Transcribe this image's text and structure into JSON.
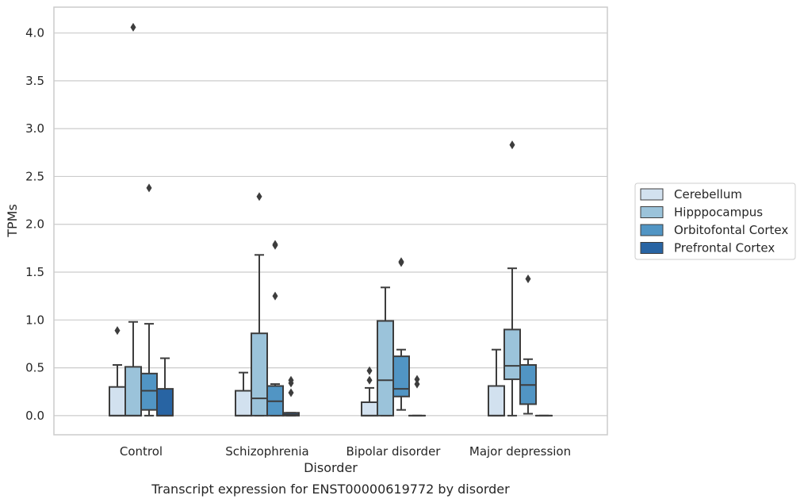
{
  "chart_data": {
    "type": "box",
    "xlabel": "Disorder",
    "ylabel": "TPMs",
    "caption": "Transcript expression for ENST00000619772 by disorder",
    "ylim": [
      -0.2,
      4.27
    ],
    "yticks": [
      0.0,
      0.5,
      1.0,
      1.5,
      2.0,
      2.5,
      3.0,
      3.5,
      4.0
    ],
    "ytick_labels": [
      "0.0",
      "0.5",
      "1.0",
      "1.5",
      "2.0",
      "2.5",
      "3.0",
      "3.5",
      "4.0"
    ],
    "grid": "horizontal",
    "legend_position": "right",
    "categories": [
      "Control",
      "Schizophrenia",
      "Bipolar disorder",
      "Major depression"
    ],
    "series": [
      {
        "name": "Cerebellum",
        "color": "#d2e1ef",
        "boxes": [
          {
            "whislo": 0.0,
            "q1": 0.0,
            "med": 0.0,
            "q3": 0.3,
            "whishi": 0.53,
            "fliers": [
              0.89
            ]
          },
          {
            "whislo": 0.0,
            "q1": 0.0,
            "med": 0.0,
            "q3": 0.26,
            "whishi": 0.45,
            "fliers": []
          },
          {
            "whislo": 0.0,
            "q1": 0.0,
            "med": 0.0,
            "q3": 0.14,
            "whishi": 0.29,
            "fliers": [
              0.37,
              0.47
            ]
          },
          {
            "whislo": 0.0,
            "q1": 0.0,
            "med": 0.0,
            "q3": 0.31,
            "whishi": 0.69,
            "fliers": []
          }
        ]
      },
      {
        "name": "Hipppocampus",
        "color": "#9bc3da",
        "boxes": [
          {
            "whislo": 0.0,
            "q1": 0.0,
            "med": 0.0,
            "q3": 0.51,
            "whishi": 0.98,
            "fliers": [
              4.06
            ]
          },
          {
            "whislo": 0.0,
            "q1": 0.0,
            "med": 0.18,
            "q3": 0.86,
            "whishi": 1.68,
            "fliers": [
              2.29
            ]
          },
          {
            "whislo": 0.0,
            "q1": 0.0,
            "med": 0.37,
            "q3": 0.99,
            "whishi": 1.34,
            "fliers": []
          },
          {
            "whislo": 0.0,
            "q1": 0.38,
            "med": 0.52,
            "q3": 0.9,
            "whishi": 1.54,
            "fliers": [
              2.83
            ]
          }
        ]
      },
      {
        "name": "Orbitofontal Cortex",
        "color": "#5195c4",
        "boxes": [
          {
            "whislo": 0.0,
            "q1": 0.06,
            "med": 0.26,
            "q3": 0.44,
            "whishi": 0.96,
            "fliers": [
              2.38
            ]
          },
          {
            "whislo": 0.0,
            "q1": 0.0,
            "med": 0.15,
            "q3": 0.31,
            "whishi": 0.33,
            "fliers": [
              1.25,
              1.78,
              1.79
            ]
          },
          {
            "whislo": 0.06,
            "q1": 0.2,
            "med": 0.28,
            "q3": 0.62,
            "whishi": 0.69,
            "fliers": [
              1.6,
              1.61
            ]
          },
          {
            "whislo": 0.02,
            "q1": 0.12,
            "med": 0.32,
            "q3": 0.53,
            "whishi": 0.59,
            "fliers": [
              1.43
            ]
          }
        ]
      },
      {
        "name": "Prefrontal Cortex",
        "color": "#2864a3",
        "boxes": [
          {
            "whislo": 0.0,
            "q1": 0.0,
            "med": 0.0,
            "q3": 0.28,
            "whishi": 0.6,
            "fliers": []
          },
          {
            "whislo": 0.0,
            "q1": 0.0,
            "med": 0.01,
            "q3": 0.03,
            "whishi": 0.03,
            "fliers": [
              0.24,
              0.34,
              0.37
            ]
          },
          {
            "whislo": 0.0,
            "q1": 0.0,
            "med": 0.0,
            "q3": 0.0,
            "whishi": 0.0,
            "fliers": [
              0.33,
              0.38
            ]
          },
          {
            "whislo": 0.0,
            "q1": 0.0,
            "med": 0.0,
            "q3": 0.0,
            "whishi": 0.0,
            "fliers": []
          }
        ]
      }
    ]
  }
}
